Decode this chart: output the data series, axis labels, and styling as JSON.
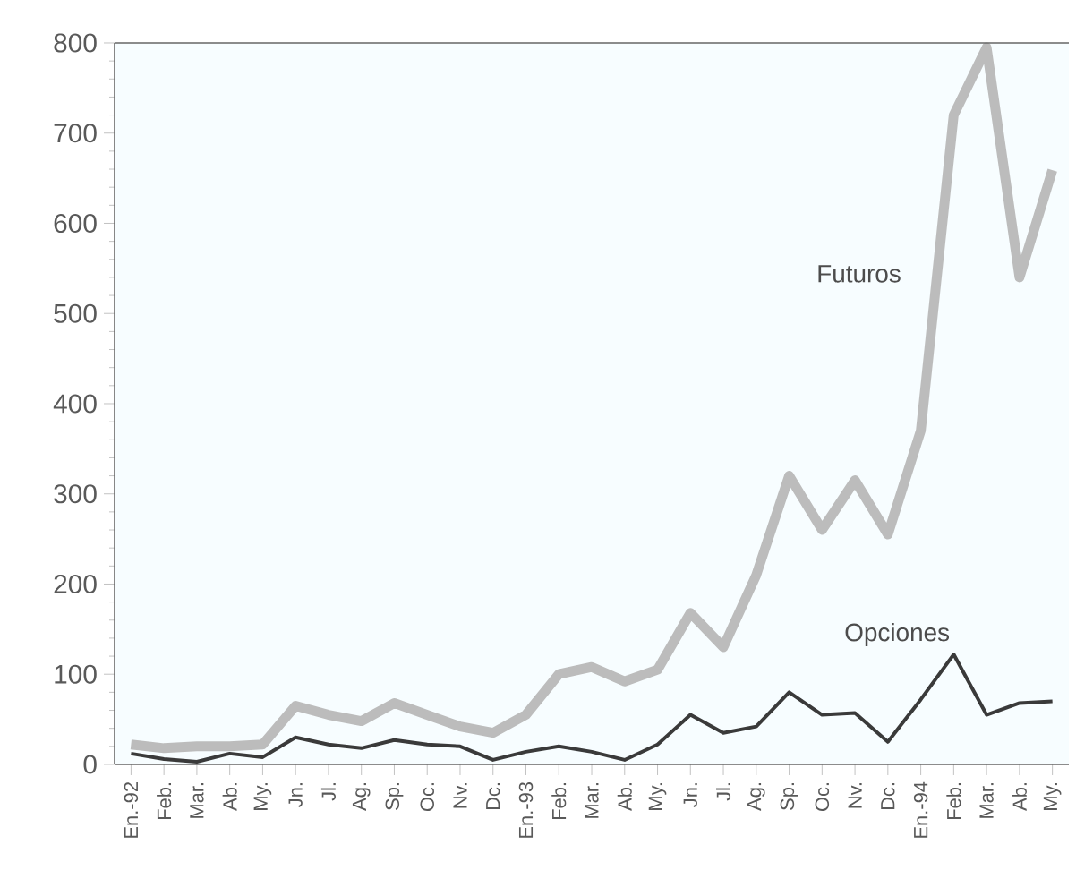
{
  "chart_data": {
    "type": "line",
    "categories": [
      "En.-92",
      "Feb.",
      "Mar.",
      "Ab.",
      "My.",
      "Jn.",
      "Jl.",
      "Ag.",
      "Sp.",
      "Oc.",
      "Nv.",
      "Dc.",
      "En.-93",
      "Feb.",
      "Mar.",
      "Ab.",
      "My.",
      "Jn.",
      "Jl.",
      "Ag.",
      "Sp.",
      "Oc.",
      "Nv.",
      "Dc.",
      "En.-94",
      "Feb.",
      "Mar.",
      "Ab.",
      "My."
    ],
    "ylim": [
      0,
      800
    ],
    "yticks": [
      0,
      100,
      200,
      300,
      400,
      500,
      600,
      700,
      800
    ],
    "grid": false,
    "series": [
      {
        "name": "Futuros",
        "color": "#bcbcbc",
        "values": [
          22,
          18,
          20,
          20,
          22,
          65,
          55,
          48,
          68,
          55,
          42,
          35,
          55,
          100,
          108,
          92,
          105,
          168,
          130,
          210,
          320,
          260,
          315,
          255,
          370,
          720,
          795,
          540,
          659
        ]
      },
      {
        "name": "Opciones",
        "color": "#3a3a3a",
        "values": [
          12,
          6,
          3,
          12,
          8,
          30,
          22,
          18,
          27,
          22,
          20,
          5,
          14,
          20,
          14,
          5,
          22,
          55,
          35,
          42,
          80,
          55,
          57,
          25,
          72,
          122,
          55,
          68,
          70
        ]
      }
    ]
  }
}
